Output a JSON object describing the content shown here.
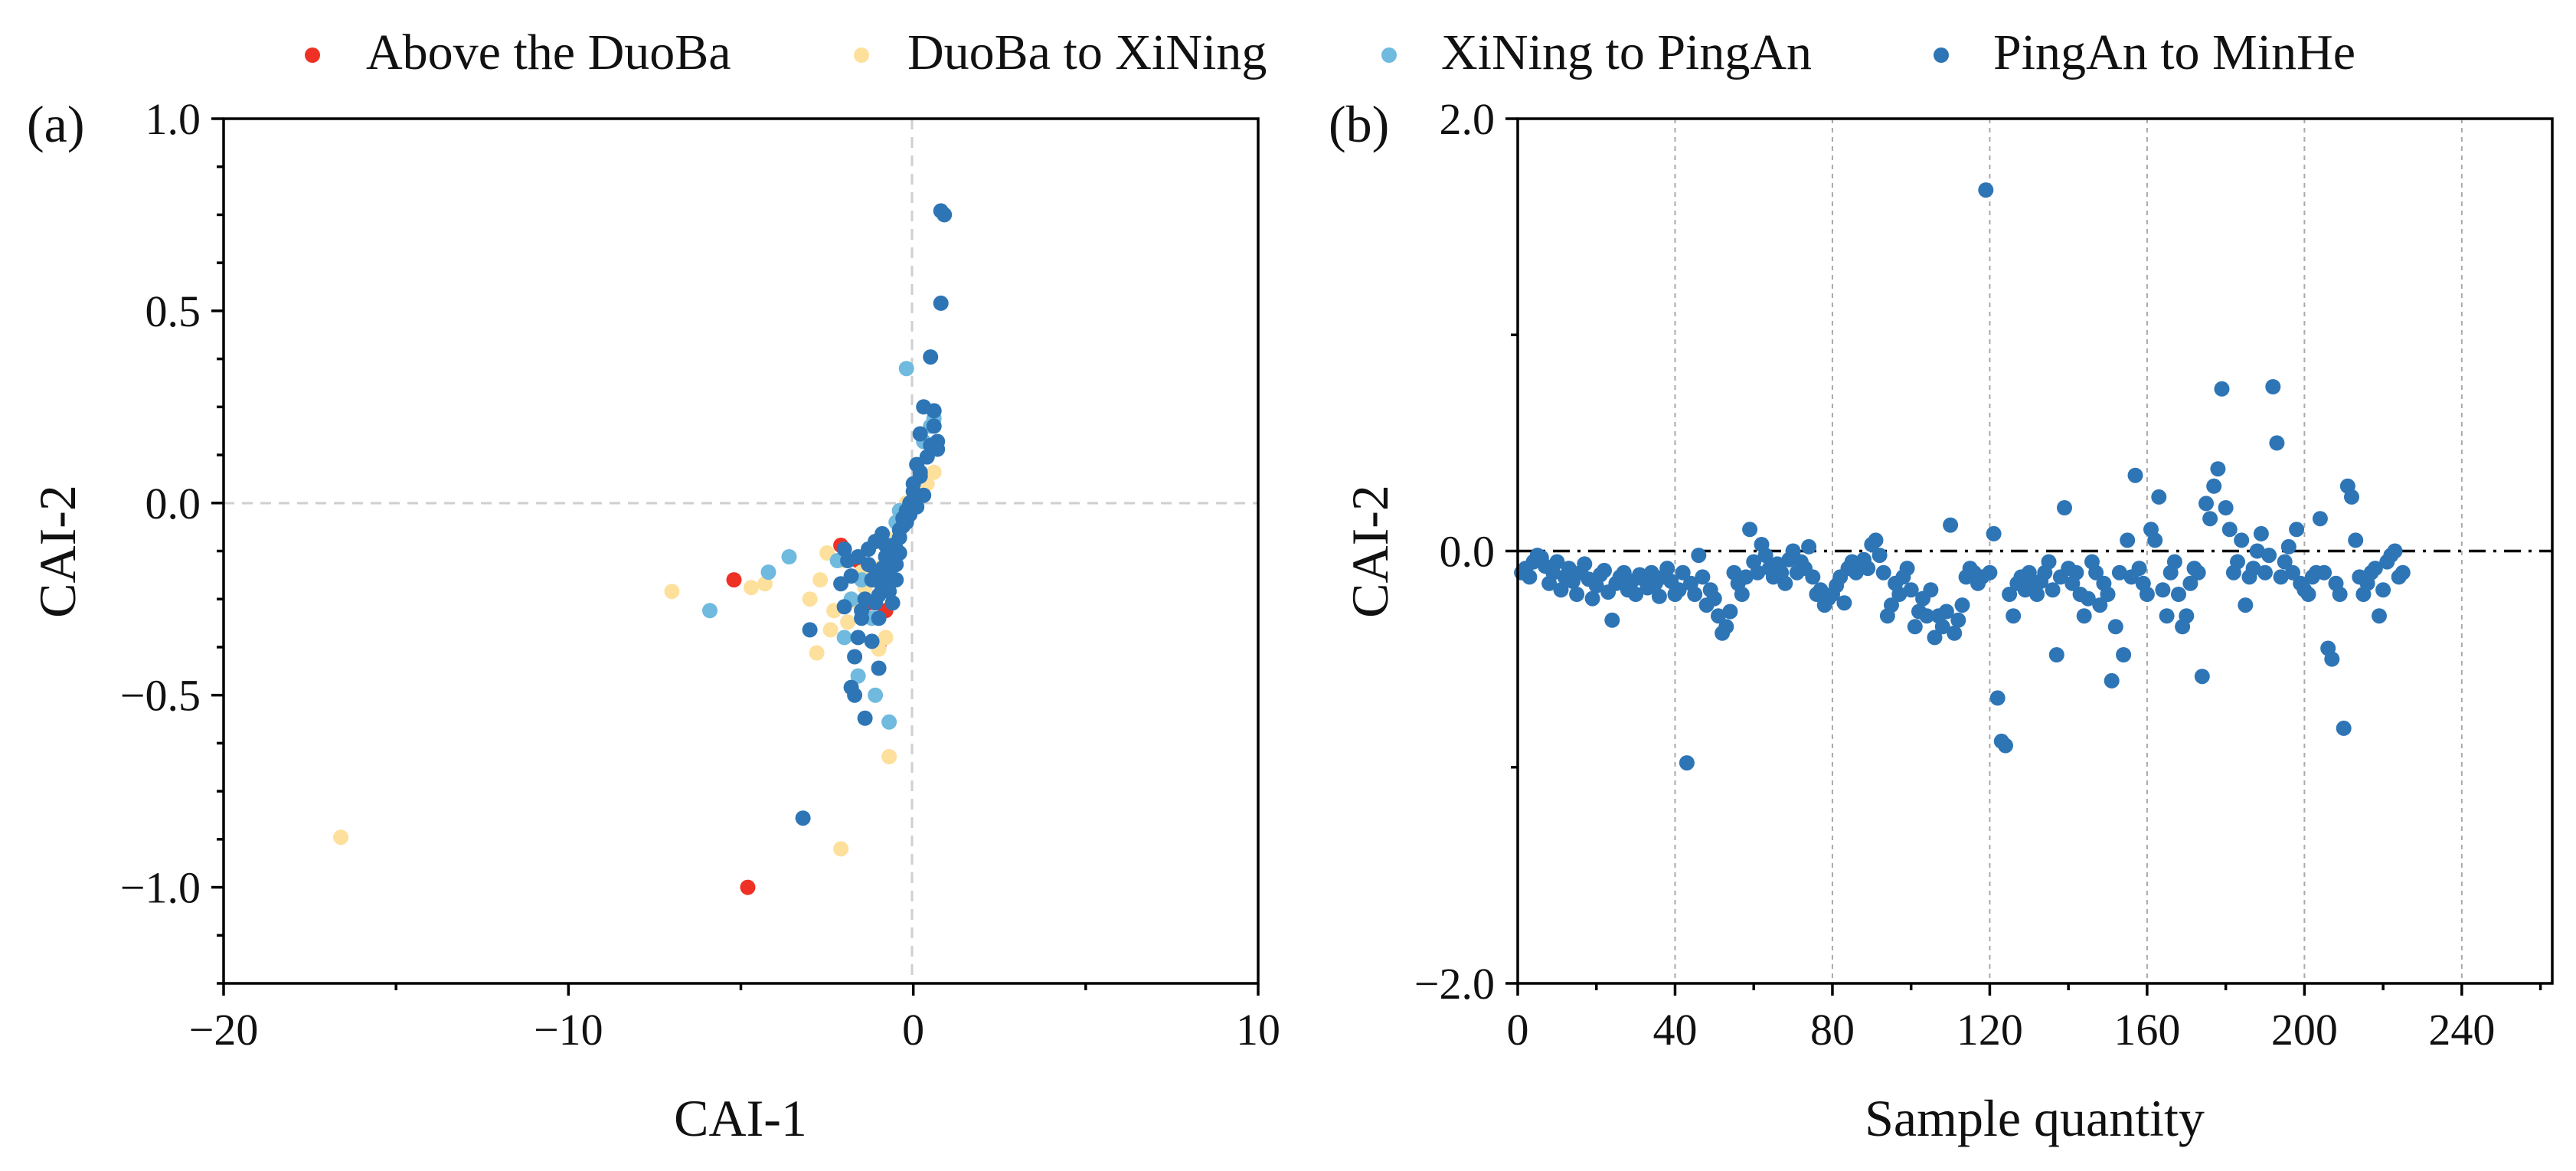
{
  "colors": {
    "above_duoba": "#ee3124",
    "duoba_xining": "#fde09c",
    "xining_pingan": "#6fbade",
    "pingan_minhe": "#2e75b6"
  },
  "legend": {
    "items": [
      {
        "key": "above",
        "label": "Above the DuoBa",
        "color": "#ee3124"
      },
      {
        "key": "duoxi",
        "label": "DuoBa to XiNing",
        "color": "#fde09c"
      },
      {
        "key": "xipa",
        "label": "XiNing to PingAn",
        "color": "#6fbade"
      },
      {
        "key": "pamh",
        "label": "PingAn to MinHe",
        "color": "#2e75b6"
      }
    ]
  },
  "chart_data": [
    {
      "panel_label": "(a)",
      "type": "scatter",
      "xlabel": "CAI-1",
      "ylabel": "CAI-2",
      "xlim": [
        -20,
        10
      ],
      "ylim": [
        -1.25,
        1.0
      ],
      "xticks": [
        -20,
        -10,
        0,
        10
      ],
      "xtick_labels": [
        "−20",
        "−10",
        "0",
        "10"
      ],
      "yticks": [
        -1.0,
        -0.5,
        0.0,
        0.5,
        1.0
      ],
      "ytick_labels": [
        "−1.0",
        "−0.5",
        "0.0",
        "0.5",
        "1.0"
      ],
      "reference_lines": {
        "x": 0,
        "y": 0
      },
      "series": [
        {
          "name": "Above the DuoBa",
          "color": "#ee3124",
          "x": [
            -4.8,
            -5.2,
            -1.0,
            -1.3,
            -2.1,
            -0.8,
            -1.6,
            -0.6
          ],
          "y": [
            -1.0,
            -0.2,
            -0.37,
            -0.26,
            -0.11,
            -0.28,
            -0.15,
            -0.2
          ]
        },
        {
          "name": "DuoBa to XiNing",
          "color": "#fde09c",
          "x": [
            -16.6,
            -7.0,
            -4.7,
            -4.3,
            -2.1,
            -0.7,
            -2.7,
            -1.0,
            -0.8,
            -1.2,
            -2.4,
            -1.8,
            -0.5,
            -0.3,
            0.4,
            -2.0,
            -1.5,
            -0.9,
            -0.6,
            -2.3,
            -1.9,
            -1.4,
            -1.1,
            -0.8,
            -2.8,
            -0.4,
            -0.2,
            0.2,
            -1.6,
            -2.5,
            0.6,
            -3.0
          ],
          "y": [
            -0.87,
            -0.23,
            -0.22,
            -0.21,
            -0.9,
            -0.66,
            -0.2,
            -0.38,
            -0.35,
            -0.3,
            -0.33,
            -0.25,
            -0.1,
            -0.05,
            0.05,
            -0.15,
            -0.18,
            -0.2,
            -0.12,
            -0.28,
            -0.31,
            -0.22,
            -0.17,
            -0.09,
            -0.39,
            -0.02,
            0.0,
            0.03,
            -0.26,
            -0.13,
            0.08,
            -0.25
          ]
        },
        {
          "name": "XiNing to PingAn",
          "color": "#6fbade",
          "x": [
            -5.9,
            -4.2,
            -3.6,
            -0.7,
            -0.2,
            0.6,
            -1.1,
            -2.2,
            -1.5,
            -0.9,
            -0.5,
            -1.8,
            -1.3,
            0.1,
            0.3,
            -0.4,
            -2.0,
            -1.6,
            0.5,
            -1.2
          ],
          "y": [
            -0.28,
            -0.18,
            -0.14,
            -0.57,
            0.35,
            0.22,
            -0.5,
            -0.15,
            -0.2,
            -0.1,
            -0.05,
            -0.25,
            -0.12,
            0.1,
            0.16,
            -0.02,
            -0.35,
            -0.45,
            0.2,
            -0.3
          ]
        },
        {
          "name": "PingAn to MinHe",
          "color": "#2e75b6",
          "x": [
            0.8,
            0.9,
            0.8,
            0.5,
            0.3,
            0.2,
            0.6,
            0.7,
            0.1,
            0.0,
            -0.1,
            -0.2,
            -0.3,
            -0.4,
            -0.5,
            -0.6,
            -0.7,
            -0.8,
            -0.9,
            -1.0,
            -1.1,
            -1.2,
            -1.3,
            -1.4,
            -1.5,
            -1.6,
            -1.7,
            -1.8,
            -1.9,
            -2.0,
            -3.2,
            -3.0,
            -1.0,
            -1.4,
            -1.7,
            0.4,
            0.2,
            0.0,
            -0.2,
            -0.4,
            -0.6,
            -0.8,
            -1.0,
            -1.2,
            -0.5,
            -0.7,
            -0.9,
            -1.1,
            0.6,
            0.5,
            0.3,
            0.1,
            -0.3,
            -0.6,
            -1.5,
            -1.8,
            -2.1,
            -0.4,
            -0.2,
            0.0,
            -0.9,
            -1.3,
            -2.0,
            -1.6,
            0.7,
            0.2,
            -0.1,
            -0.5,
            -0.8,
            -1.1
          ],
          "y": [
            0.76,
            0.75,
            0.52,
            0.38,
            0.25,
            0.18,
            0.24,
            0.14,
            0.1,
            0.05,
            0.0,
            -0.03,
            -0.06,
            -0.09,
            -0.12,
            -0.15,
            -0.18,
            -0.2,
            -0.22,
            -0.24,
            -0.26,
            -0.2,
            -0.16,
            -0.25,
            -0.3,
            -0.35,
            -0.4,
            -0.48,
            -0.15,
            -0.12,
            -0.82,
            -0.33,
            -0.43,
            -0.56,
            -0.5,
            0.12,
            0.08,
            0.03,
            -0.02,
            -0.07,
            -0.11,
            -0.14,
            -0.3,
            -0.36,
            -0.2,
            -0.23,
            -0.17,
            -0.1,
            0.2,
            0.15,
            0.02,
            -0.01,
            -0.04,
            -0.26,
            -0.28,
            -0.19,
            -0.21,
            -0.13,
            -0.05,
            0.0,
            -0.08,
            -0.12,
            -0.27,
            -0.14,
            0.16,
            0.07,
            -0.03,
            -0.16,
            -0.11,
            -0.19
          ]
        }
      ]
    },
    {
      "panel_label": "(b)",
      "type": "scatter",
      "xlabel": "Sample quantity",
      "ylabel": "CAI-2",
      "xlim": [
        0,
        263
      ],
      "ylim": [
        -2.0,
        2.0
      ],
      "xticks": [
        0,
        40,
        80,
        120,
        160,
        200,
        240
      ],
      "xtick_labels": [
        "0",
        "40",
        "80",
        "120",
        "160",
        "200",
        "240"
      ],
      "yticks": [
        -2.0,
        0.0,
        2.0
      ],
      "ytick_labels": [
        "−2.0",
        "0.0",
        "2.0"
      ],
      "vertical_gridlines": [
        40,
        80,
        120,
        160,
        200,
        240
      ],
      "baseline_y": 0,
      "color": "#2e75b6",
      "y_values": [
        -0.1,
        -0.08,
        -0.12,
        -0.05,
        -0.02,
        -0.03,
        -0.07,
        -0.15,
        -0.1,
        -0.05,
        -0.18,
        -0.12,
        -0.08,
        -0.14,
        -0.2,
        -0.1,
        -0.06,
        -0.13,
        -0.22,
        -0.16,
        -0.11,
        -0.09,
        -0.19,
        -0.32,
        -0.15,
        -0.12,
        -0.1,
        -0.18,
        -0.14,
        -0.2,
        -0.11,
        -0.13,
        -0.17,
        -0.1,
        -0.15,
        -0.21,
        -0.12,
        -0.08,
        -0.14,
        -0.2,
        -0.18,
        -0.1,
        -0.98,
        -0.15,
        -0.2,
        -0.02,
        -0.12,
        -0.25,
        -0.18,
        -0.22,
        -0.3,
        -0.38,
        -0.35,
        -0.28,
        -0.1,
        -0.15,
        -0.2,
        -0.12,
        0.1,
        -0.05,
        -0.1,
        0.03,
        -0.02,
        -0.08,
        -0.12,
        -0.06,
        -0.1,
        -0.15,
        -0.04,
        0.0,
        -0.1,
        -0.05,
        -0.08,
        0.02,
        -0.12,
        -0.2,
        -0.18,
        -0.25,
        -0.22,
        -0.2,
        -0.16,
        -0.12,
        -0.24,
        -0.08,
        -0.05,
        -0.1,
        -0.06,
        -0.04,
        -0.08,
        0.03,
        0.05,
        -0.02,
        -0.1,
        -0.3,
        -0.25,
        -0.15,
        -0.2,
        -0.12,
        -0.08,
        -0.18,
        -0.35,
        -0.28,
        -0.22,
        -0.3,
        -0.18,
        -0.4,
        -0.3,
        -0.35,
        -0.28,
        0.12,
        -0.38,
        -0.32,
        -0.25,
        -0.12,
        -0.08,
        -0.1,
        -0.15,
        -0.12,
        1.67,
        -0.1,
        0.08,
        -0.68,
        -0.88,
        -0.9,
        -0.2,
        -0.3,
        -0.15,
        -0.12,
        -0.18,
        -0.1,
        -0.16,
        -0.2,
        -0.14,
        -0.1,
        -0.05,
        -0.18,
        -0.48,
        -0.12,
        0.2,
        -0.08,
        -0.15,
        -0.1,
        -0.2,
        -0.3,
        -0.22,
        -0.05,
        -0.1,
        -0.25,
        -0.15,
        -0.2,
        -0.6,
        -0.35,
        -0.1,
        -0.48,
        0.05,
        -0.12,
        0.35,
        -0.08,
        -0.15,
        -0.2,
        0.1,
        0.05,
        0.25,
        -0.18,
        -0.3,
        -0.1,
        -0.05,
        -0.2,
        -0.35,
        -0.3,
        -0.15,
        -0.08,
        -0.1,
        -0.58,
        0.22,
        0.15,
        0.3,
        0.38,
        0.75,
        0.2,
        0.1,
        -0.1,
        -0.05,
        0.05,
        -0.25,
        -0.12,
        -0.08,
        0.0,
        0.08,
        -0.1,
        -0.02,
        0.76,
        0.5,
        -0.12,
        -0.05,
        0.02,
        -0.1,
        0.1,
        -0.15,
        -0.18,
        -0.2,
        -0.12,
        -0.1,
        0.15,
        -0.1,
        -0.45,
        -0.5,
        -0.15,
        -0.2,
        -0.82,
        0.3,
        0.25,
        0.05,
        -0.12,
        -0.2,
        -0.15,
        -0.1,
        -0.08,
        -0.3,
        -0.18,
        -0.05,
        -0.02,
        0.0,
        -0.12,
        -0.1
      ]
    }
  ]
}
